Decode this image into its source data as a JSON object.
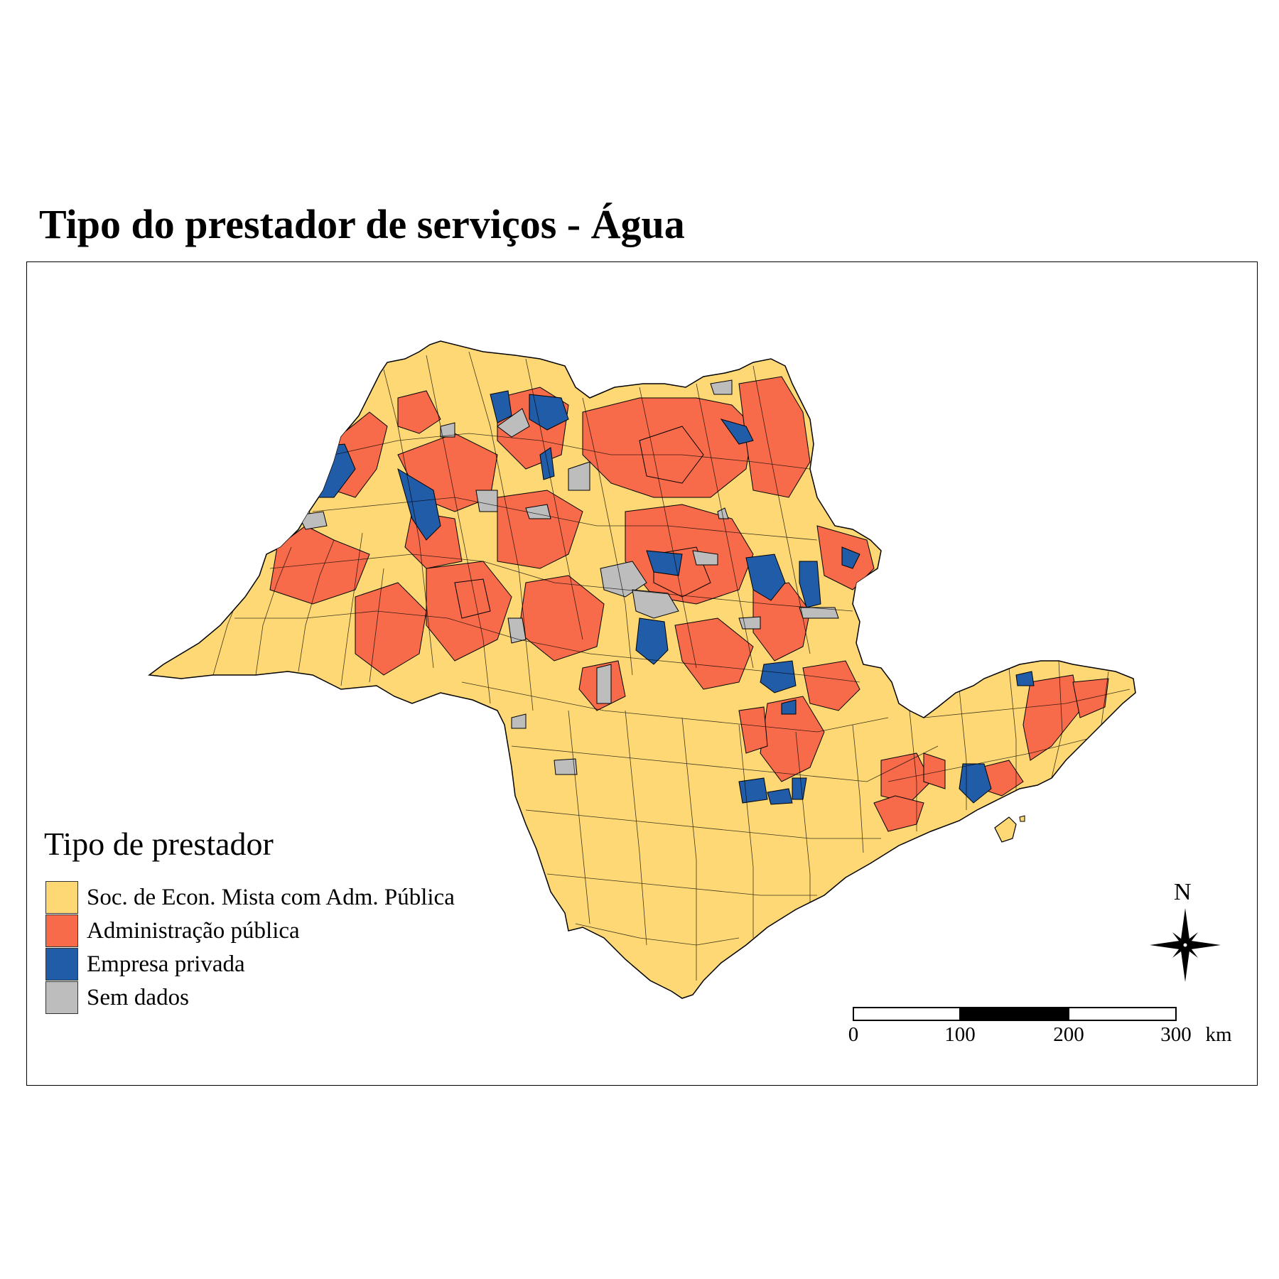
{
  "title": "Tipo do prestador de serviços - Água",
  "legend": {
    "title": "Tipo de prestador",
    "items": [
      {
        "label": "Soc. de Econ. Mista com Adm. Pública",
        "color": "#FDD875"
      },
      {
        "label": "Administração pública",
        "color": "#F76B4A"
      },
      {
        "label": "Empresa privada",
        "color": "#215CA8"
      },
      {
        "label": "Sem dados",
        "color": "#BDBDBD"
      }
    ]
  },
  "scale_bar": {
    "labels": [
      "0",
      "100",
      "200",
      "300"
    ],
    "unit": "km"
  },
  "north_arrow": {
    "label": "N",
    "icon": "compass-rose-icon"
  },
  "colors": {
    "border": "#000000",
    "state_fill_default": "#FDD875"
  }
}
